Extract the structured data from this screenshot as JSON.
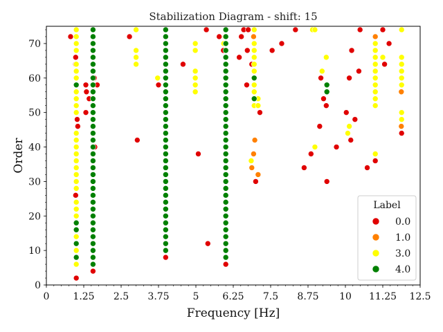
{
  "chart_data": {
    "type": "scatter",
    "title": "Stabilization Diagram - shift: 15",
    "xlabel": "Frequency [Hz]",
    "ylabel": "Order",
    "xlim": [
      0,
      12.5
    ],
    "ylim": [
      0,
      75
    ],
    "xticks": [
      "0",
      "1.25",
      "2.5",
      "3.75",
      "5",
      "6.25",
      "7.5",
      "8.75",
      "10",
      "11.25",
      "12.5"
    ],
    "xtick_values": [
      0,
      1.25,
      2.5,
      3.75,
      5,
      6.25,
      7.5,
      8.75,
      10,
      11.25,
      12.5
    ],
    "yticks": [
      "0",
      "10",
      "20",
      "30",
      "40",
      "50",
      "60",
      "70"
    ],
    "ytick_values": [
      0,
      10,
      20,
      30,
      40,
      50,
      60,
      70
    ],
    "grid": false,
    "legend": {
      "title": "Label",
      "placement": "bottom-right",
      "entries": [
        {
          "label": "0.0",
          "color": "#e00000"
        },
        {
          "label": "1.0",
          "color": "#ff8000"
        },
        {
          "label": "3.0",
          "color": "#ffff00"
        },
        {
          "label": "4.0",
          "color": "#008000"
        }
      ]
    },
    "series": [
      {
        "name": "0.0",
        "color": "#e00000",
        "points": [
          [
            0.81,
            72
          ],
          [
            0.98,
            66
          ],
          [
            0.98,
            64
          ],
          [
            0.98,
            26
          ],
          [
            1.0,
            2
          ],
          [
            1.03,
            48
          ],
          [
            1.05,
            46
          ],
          [
            1.32,
            58
          ],
          [
            1.32,
            50
          ],
          [
            1.34,
            56
          ],
          [
            1.43,
            54
          ],
          [
            1.56,
            4
          ],
          [
            1.6,
            60
          ],
          [
            1.62,
            40
          ],
          [
            1.7,
            58
          ],
          [
            2.78,
            72
          ],
          [
            3.04,
            42
          ],
          [
            3.75,
            58
          ],
          [
            3.99,
            8
          ],
          [
            4.57,
            64
          ],
          [
            5.08,
            38
          ],
          [
            5.35,
            74
          ],
          [
            5.4,
            12
          ],
          [
            5.78,
            72
          ],
          [
            5.92,
            68
          ],
          [
            6.0,
            6
          ],
          [
            6.45,
            66
          ],
          [
            6.52,
            72
          ],
          [
            6.6,
            74
          ],
          [
            6.7,
            58
          ],
          [
            6.72,
            68
          ],
          [
            6.75,
            74
          ],
          [
            6.87,
            64
          ],
          [
            7.0,
            30
          ],
          [
            7.14,
            50
          ],
          [
            7.55,
            68
          ],
          [
            7.87,
            70
          ],
          [
            8.33,
            74
          ],
          [
            8.62,
            34
          ],
          [
            8.85,
            38
          ],
          [
            9.14,
            46
          ],
          [
            9.18,
            60
          ],
          [
            9.27,
            54
          ],
          [
            9.36,
            52
          ],
          [
            9.38,
            30
          ],
          [
            9.7,
            40
          ],
          [
            10.03,
            50
          ],
          [
            10.13,
            60
          ],
          [
            10.18,
            42
          ],
          [
            10.21,
            68
          ],
          [
            10.32,
            48
          ],
          [
            10.45,
            62
          ],
          [
            10.49,
            74
          ],
          [
            10.73,
            34
          ],
          [
            11.0,
            36
          ],
          [
            11.25,
            74
          ],
          [
            11.31,
            64
          ],
          [
            11.46,
            70
          ],
          [
            11.88,
            44
          ]
        ]
      },
      {
        "name": "1.0",
        "color": "#ff8000",
        "points": [
          [
            6.0,
            60
          ],
          [
            6.87,
            34
          ],
          [
            6.93,
            72
          ],
          [
            6.93,
            38
          ],
          [
            6.97,
            42
          ],
          [
            7.08,
            32
          ],
          [
            11.0,
            72
          ],
          [
            11.87,
            56
          ],
          [
            11.87,
            46
          ]
        ]
      },
      {
        "name": "3.0",
        "color": "#ffff00",
        "points": [
          [
            1.0,
            74
          ],
          [
            1.0,
            72
          ],
          [
            1.0,
            70
          ],
          [
            1.0,
            68
          ],
          [
            1.0,
            64
          ],
          [
            1.0,
            62
          ],
          [
            1.0,
            60
          ],
          [
            1.0,
            56
          ],
          [
            1.0,
            54
          ],
          [
            1.0,
            52
          ],
          [
            1.0,
            50
          ],
          [
            1.0,
            44
          ],
          [
            1.0,
            42
          ],
          [
            1.0,
            40
          ],
          [
            1.0,
            38
          ],
          [
            1.0,
            36
          ],
          [
            1.0,
            34
          ],
          [
            1.0,
            32
          ],
          [
            1.0,
            30
          ],
          [
            1.0,
            28
          ],
          [
            1.0,
            24
          ],
          [
            1.0,
            22
          ],
          [
            1.0,
            20
          ],
          [
            1.0,
            14
          ],
          [
            1.0,
            10
          ],
          [
            1.0,
            6
          ],
          [
            3.0,
            74
          ],
          [
            3.0,
            68
          ],
          [
            3.0,
            66
          ],
          [
            3.0,
            64
          ],
          [
            3.72,
            60
          ],
          [
            4.98,
            70
          ],
          [
            4.98,
            68
          ],
          [
            4.98,
            62
          ],
          [
            4.98,
            60
          ],
          [
            4.98,
            58
          ],
          [
            4.98,
            56
          ],
          [
            5.93,
            70
          ],
          [
            5.98,
            72
          ],
          [
            6.0,
            58
          ],
          [
            6.0,
            40
          ],
          [
            6.95,
            74
          ],
          [
            6.95,
            70
          ],
          [
            6.95,
            68
          ],
          [
            6.95,
            66
          ],
          [
            6.95,
            64
          ],
          [
            6.95,
            62
          ],
          [
            6.95,
            58
          ],
          [
            6.95,
            56
          ],
          [
            6.95,
            54
          ],
          [
            6.95,
            52
          ],
          [
            6.85,
            36
          ],
          [
            7.08,
            54
          ],
          [
            7.08,
            52
          ],
          [
            8.9,
            74
          ],
          [
            8.98,
            74
          ],
          [
            8.98,
            40
          ],
          [
            9.22,
            62
          ],
          [
            9.36,
            66
          ],
          [
            10.08,
            44
          ],
          [
            10.13,
            46
          ],
          [
            11.0,
            70
          ],
          [
            11.0,
            68
          ],
          [
            11.0,
            66
          ],
          [
            11.0,
            64
          ],
          [
            11.0,
            62
          ],
          [
            11.0,
            60
          ],
          [
            11.0,
            58
          ],
          [
            11.0,
            56
          ],
          [
            11.0,
            54
          ],
          [
            11.0,
            52
          ],
          [
            11.0,
            38
          ],
          [
            11.25,
            66
          ],
          [
            11.88,
            74
          ],
          [
            11.88,
            66
          ],
          [
            11.88,
            64
          ],
          [
            11.88,
            62
          ],
          [
            11.88,
            60
          ],
          [
            11.88,
            58
          ],
          [
            11.88,
            50
          ],
          [
            11.88,
            48
          ]
        ]
      },
      {
        "name": "4.0",
        "color": "#008000",
        "columns": [
          {
            "x": 1.0,
            "orders": [
              58,
              18,
              16,
              12,
              8
            ]
          },
          {
            "x": 1.56,
            "orders": [
              74,
              72,
              70,
              68,
              66,
              64,
              62,
              60,
              58,
              56,
              54,
              52,
              50,
              48,
              46,
              44,
              42,
              40,
              38,
              36,
              34,
              32,
              30,
              28,
              26,
              24,
              22,
              20,
              18,
              16,
              14,
              12,
              10,
              8,
              6
            ]
          },
          {
            "x": 3.99,
            "orders": [
              74,
              72,
              70,
              68,
              66,
              64,
              62,
              60,
              58,
              56,
              54,
              52,
              50,
              48,
              46,
              44,
              42,
              40,
              38,
              36,
              34,
              32,
              30,
              28,
              26,
              24,
              22,
              20,
              18,
              16,
              14,
              12,
              10
            ]
          },
          {
            "x": 6.0,
            "orders": [
              74,
              72,
              70,
              68,
              66,
              64,
              62,
              60,
              58,
              56,
              54,
              52,
              50,
              48,
              46,
              44,
              42,
              40,
              38,
              36,
              34,
              32,
              30,
              28,
              26,
              24,
              22,
              20,
              18,
              16,
              14,
              12,
              10,
              8
            ]
          },
          {
            "x": 6.95,
            "orders": [
              60,
              54
            ]
          },
          {
            "x": 9.38,
            "orders": [
              58,
              56
            ]
          }
        ]
      }
    ]
  }
}
